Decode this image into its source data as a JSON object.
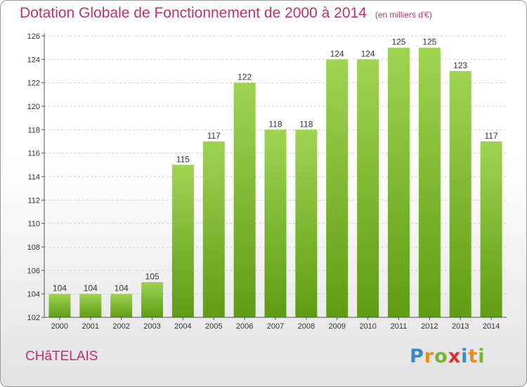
{
  "title": "Dotation Globale de Fonctionnement de 2000 à 2014",
  "unit": "(en milliers d'€)",
  "commune": "CHâTELAIS",
  "logo": {
    "text": "Proxiti",
    "colors": [
      "#3b87c9",
      "#e98c1d",
      "#7ab32e",
      "#d5342d"
    ]
  },
  "colors": {
    "bar_top": "#9fd451",
    "bar_bottom": "#5f9c13",
    "title": "#c12f6f",
    "grid": "#cfcfcf"
  },
  "chart_data": {
    "type": "bar",
    "categories": [
      "2000",
      "2001",
      "2002",
      "2003",
      "2004",
      "2005",
      "2006",
      "2007",
      "2008",
      "2009",
      "2010",
      "2011",
      "2012",
      "2013",
      "2014"
    ],
    "values": [
      104,
      104,
      104,
      105,
      115,
      117,
      122,
      118,
      118,
      124,
      124,
      125,
      125,
      123,
      117
    ],
    "ylim": [
      102,
      126
    ],
    "yticks": [
      102,
      104,
      106,
      108,
      110,
      112,
      114,
      116,
      118,
      120,
      122,
      124,
      126
    ],
    "grid": true
  }
}
